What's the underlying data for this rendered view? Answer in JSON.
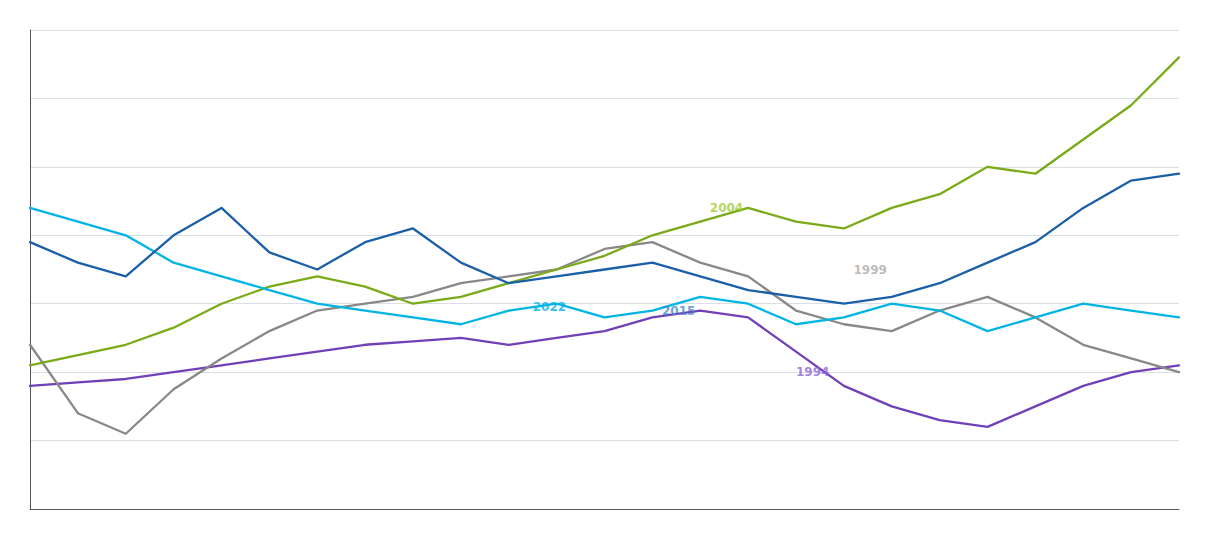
{
  "chart_data": {
    "type": "line",
    "x": [
      0,
      1,
      2,
      3,
      4,
      5,
      6,
      7,
      8,
      9,
      10,
      11,
      12,
      13,
      14,
      15,
      16,
      17,
      18,
      19,
      20,
      21,
      22,
      23,
      24
    ],
    "series": [
      {
        "name": "2015",
        "color": "#1a5fa8",
        "values": [
          138,
          132,
          128,
          140,
          148,
          135,
          130,
          138,
          142,
          132,
          126,
          128,
          130,
          132,
          128,
          124,
          122,
          120,
          122,
          126,
          132,
          138,
          148,
          156,
          158
        ]
      },
      {
        "name": "2022",
        "color": "#00b4e6",
        "values": [
          148,
          144,
          140,
          132,
          128,
          124,
          120,
          118,
          116,
          114,
          118,
          120,
          116,
          118,
          122,
          120,
          114,
          116,
          120,
          118,
          112,
          116,
          120,
          118,
          116
        ]
      },
      {
        "name": "2004",
        "color": "#7aaa18",
        "values": [
          102,
          105,
          108,
          113,
          120,
          125,
          128,
          125,
          120,
          122,
          126,
          130,
          134,
          140,
          144,
          148,
          144,
          142,
          148,
          152,
          160,
          158,
          168,
          178,
          192
        ]
      },
      {
        "name": "1999",
        "color": "#888888",
        "values": [
          108,
          88,
          82,
          95,
          104,
          112,
          118,
          120,
          122,
          126,
          128,
          130,
          136,
          138,
          132,
          128,
          118,
          114,
          112,
          118,
          122,
          116,
          108,
          104,
          100
        ]
      },
      {
        "name": "1994",
        "color": "#7040b8",
        "values": [
          96,
          97,
          98,
          100,
          102,
          104,
          106,
          108,
          109,
          110,
          108,
          110,
          112,
          116,
          118,
          116,
          106,
          96,
          90,
          86,
          84,
          90,
          96,
          100,
          102
        ]
      }
    ],
    "annotations": [
      {
        "text": "2015",
        "x": 13.2,
        "y": 118,
        "color": "#4488cc"
      },
      {
        "text": "2022",
        "x": 10.5,
        "y": 119,
        "color": "#00b4e6"
      },
      {
        "text": "2004",
        "x": 14.2,
        "y": 148,
        "color": "#9ecc30"
      },
      {
        "text": "1999",
        "x": 17.2,
        "y": 130,
        "color": "#aaaaaa"
      },
      {
        "text": "1994",
        "x": 16.0,
        "y": 100,
        "color": "#9060d8"
      }
    ],
    "xlim": [
      0,
      24
    ],
    "ylim": [
      60,
      200
    ],
    "yticks": [
      80,
      100,
      120,
      140,
      160,
      180,
      200
    ],
    "grid": true,
    "tick_labels": false
  }
}
